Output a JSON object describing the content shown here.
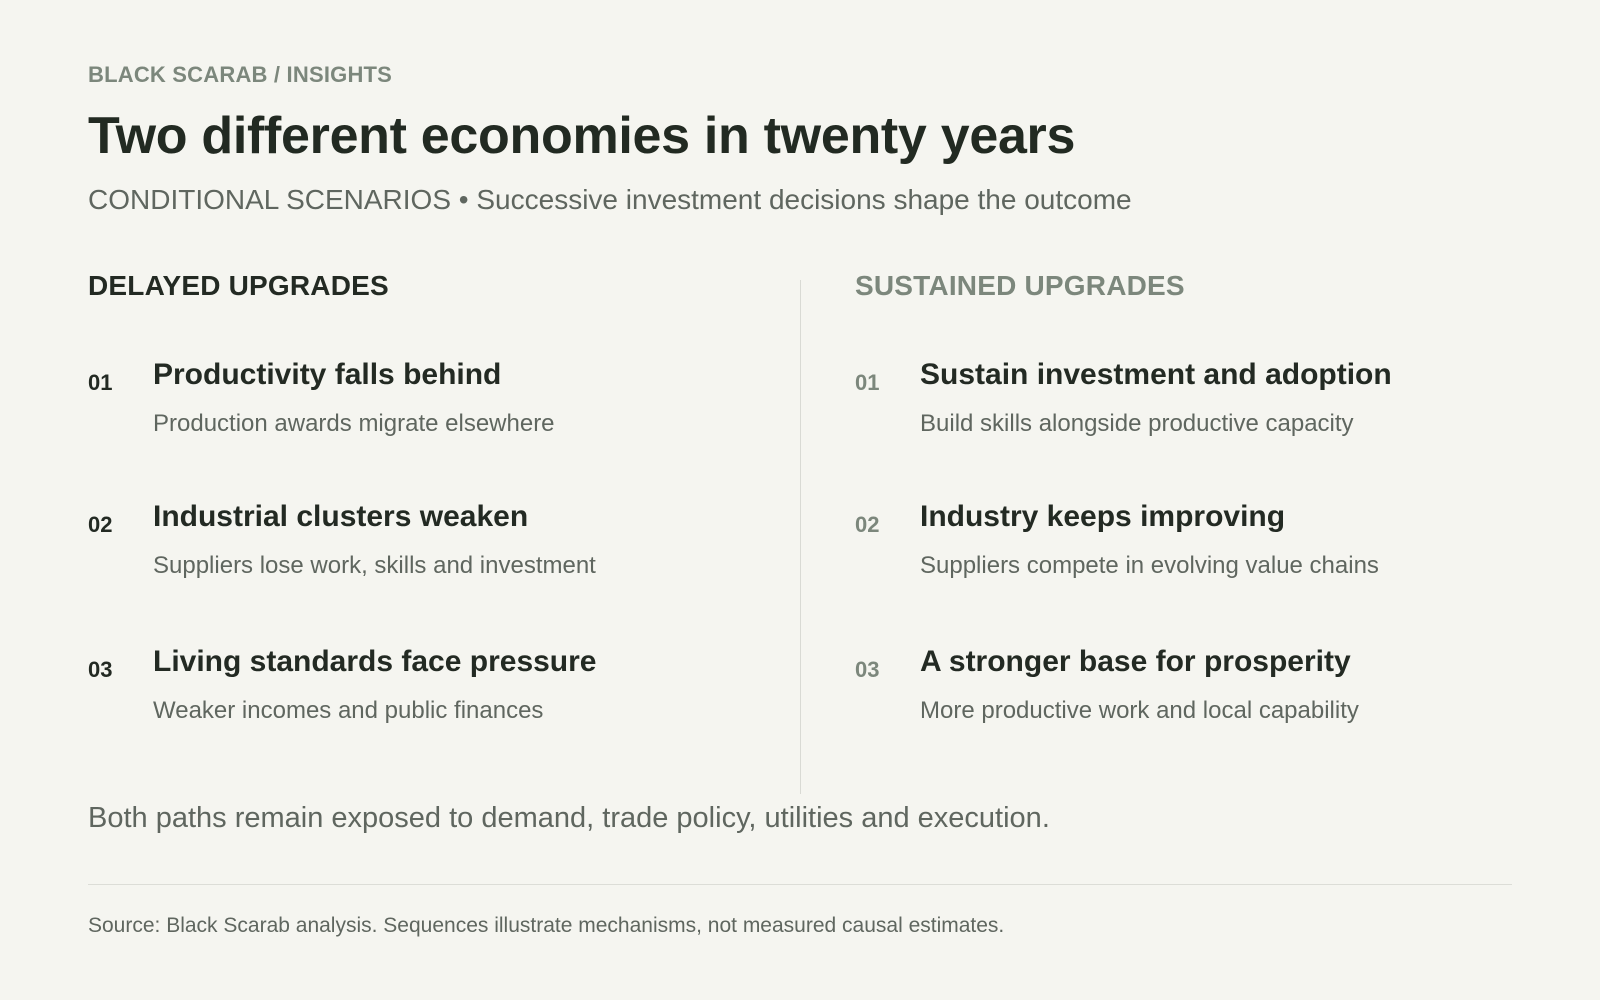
{
  "header": {
    "eyebrow": "BLACK SCARAB / INSIGHTS",
    "title": "Two different economies in twenty years",
    "subtitle": "CONDITIONAL SCENARIOS • Successive investment decisions shape the outcome"
  },
  "scenarios": [
    {
      "title": "DELAYED UPGRADES",
      "steps": [
        {
          "num": "01",
          "heading": "Productivity falls behind",
          "desc": "Production awards migrate elsewhere"
        },
        {
          "num": "02",
          "heading": "Industrial clusters weaken",
          "desc": "Suppliers lose work, skills and investment"
        },
        {
          "num": "03",
          "heading": "Living standards face pressure",
          "desc": "Weaker incomes and public finances"
        }
      ]
    },
    {
      "title": "SUSTAINED UPGRADES",
      "steps": [
        {
          "num": "01",
          "heading": "Sustain investment and adoption",
          "desc": "Build skills alongside productive capacity"
        },
        {
          "num": "02",
          "heading": "Industry keeps improving",
          "desc": "Suppliers compete in evolving value chains"
        },
        {
          "num": "03",
          "heading": "A stronger base for prosperity",
          "desc": "More productive work and local capability"
        }
      ]
    }
  ],
  "footnote": "Both paths remain exposed to demand, trade policy, utilities and execution.",
  "source": "Source: Black Scarab analysis. Sequences illustrate mechanisms, not measured causal estimates.",
  "colors": {
    "background": "#f5f5f0",
    "text_dark": "#232a23",
    "text_muted": "#5f665f",
    "accent_sage": "#7c877c",
    "divider": "#d9dad4"
  }
}
